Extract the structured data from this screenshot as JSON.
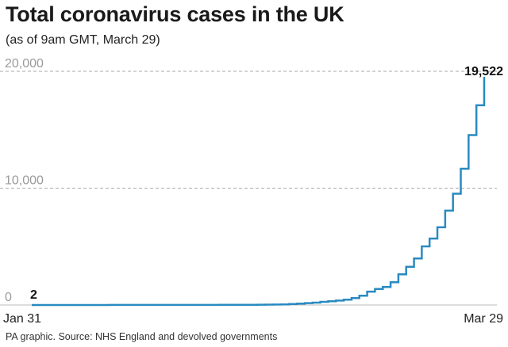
{
  "header": {
    "title": "Total coronavirus cases in the UK",
    "subtitle": "(as of 9am GMT, March 29)"
  },
  "footer": {
    "source": "PA graphic. Source: NHS England and devolved governments"
  },
  "colors": {
    "line": "#2a8ac0",
    "grid": "#aaaaaa",
    "axis": "#bbbbbb"
  },
  "chart_data": {
    "type": "line",
    "style": "step",
    "title": "Total coronavirus cases in the UK",
    "subtitle": "(as of 9am GMT, March 29)",
    "xlabel": "",
    "ylabel": "",
    "ylim": [
      0,
      20000
    ],
    "grid": true,
    "y_ticks": [
      {
        "value": 0,
        "label": "0"
      },
      {
        "value": 10000,
        "label": "10,000"
      },
      {
        "value": 20000,
        "label": "20,000"
      }
    ],
    "x_ticks": [
      "Jan 31",
      "Mar 29"
    ],
    "annotations": [
      {
        "date": "Jan 31",
        "value": 2,
        "label": "2"
      },
      {
        "date": "Mar 29",
        "value": 19522,
        "label": "19,522"
      }
    ],
    "series": [
      {
        "dates": [
          "Jan 31",
          "Feb 1",
          "Feb 2",
          "Feb 3",
          "Feb 4",
          "Feb 5",
          "Feb 6",
          "Feb 7",
          "Feb 8",
          "Feb 9",
          "Feb 10",
          "Feb 11",
          "Feb 12",
          "Feb 13",
          "Feb 14",
          "Feb 15",
          "Feb 16",
          "Feb 17",
          "Feb 18",
          "Feb 19",
          "Feb 20",
          "Feb 21",
          "Feb 22",
          "Feb 23",
          "Feb 24",
          "Feb 25",
          "Feb 26",
          "Feb 27",
          "Feb 28",
          "Feb 29",
          "Mar 1",
          "Mar 2",
          "Mar 3",
          "Mar 4",
          "Mar 5",
          "Mar 6",
          "Mar 7",
          "Mar 8",
          "Mar 9",
          "Mar 10",
          "Mar 11",
          "Mar 12",
          "Mar 13",
          "Mar 14",
          "Mar 15",
          "Mar 16",
          "Mar 17",
          "Mar 18",
          "Mar 19",
          "Mar 20",
          "Mar 21",
          "Mar 22",
          "Mar 23",
          "Mar 24",
          "Mar 25",
          "Mar 26",
          "Mar 27",
          "Mar 28",
          "Mar 29"
        ],
        "values": [
          2,
          2,
          2,
          2,
          2,
          2,
          3,
          3,
          3,
          4,
          8,
          8,
          9,
          9,
          9,
          9,
          9,
          9,
          9,
          9,
          9,
          9,
          9,
          9,
          13,
          13,
          15,
          16,
          20,
          23,
          36,
          40,
          51,
          85,
          115,
          163,
          206,
          273,
          321,
          382,
          456,
          590,
          798,
          1140,
          1372,
          1543,
          1950,
          2626,
          3269,
          3983,
          5018,
          5683,
          6650,
          8077,
          9529,
          11658,
          14543,
          17089,
          19522
        ]
      }
    ]
  }
}
